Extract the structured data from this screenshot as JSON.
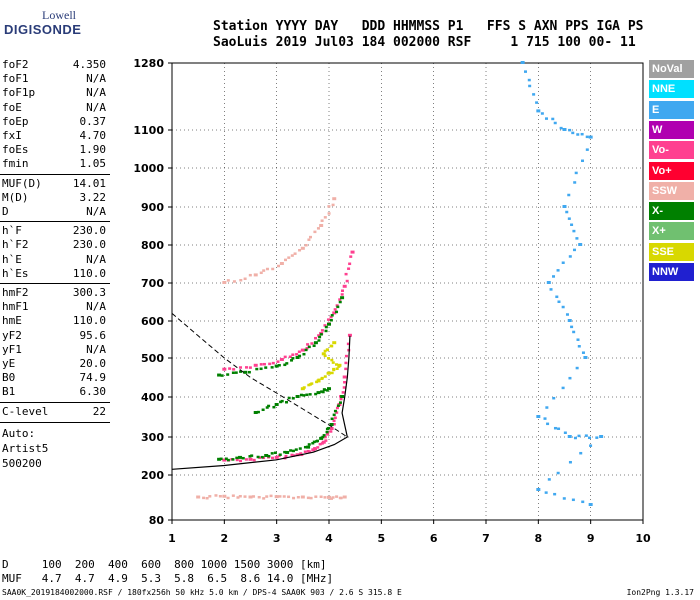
{
  "logo": {
    "line1": "Lowell",
    "line2": "DIGISONDE"
  },
  "header": {
    "line1": "Station YYYY DAY   DDD HHMMSS P1   FFS S AXN PPS IGA PS",
    "line2": "SaoLuis 2019 Jul03 184 002000 RSF     1 715 100 00- 11"
  },
  "params": [
    {
      "k": "foF2",
      "v": "4.350"
    },
    {
      "k": "foF1",
      "v": "N/A"
    },
    {
      "k": "foF1p",
      "v": "N/A"
    },
    {
      "k": "foE",
      "v": "N/A"
    },
    {
      "k": "foEp",
      "v": "0.37"
    },
    {
      "k": "fxI",
      "v": "4.70"
    },
    {
      "k": "foEs",
      "v": "1.90"
    },
    {
      "k": "fmin",
      "v": "1.05"
    },
    {
      "k": "MUF(D)",
      "v": "14.01"
    },
    {
      "k": "M(D)",
      "v": "3.22"
    },
    {
      "k": "D",
      "v": "N/A"
    },
    {
      "k": "h`F",
      "v": "230.0"
    },
    {
      "k": "h`F2",
      "v": "230.0"
    },
    {
      "k": "h`E",
      "v": "N/A"
    },
    {
      "k": "h`Es",
      "v": "110.0"
    },
    {
      "k": "hmF2",
      "v": "300.3"
    },
    {
      "k": "hmF1",
      "v": "N/A"
    },
    {
      "k": "hmE",
      "v": "110.0"
    },
    {
      "k": "yF2",
      "v": "95.6"
    },
    {
      "k": "yF1",
      "v": "N/A"
    },
    {
      "k": "yE",
      "v": "20.0"
    },
    {
      "k": "B0",
      "v": "74.9"
    },
    {
      "k": "B1",
      "v": "6.30"
    },
    {
      "k": "C-level",
      "v": "22"
    }
  ],
  "auto": {
    "l1": "Auto:",
    "l2": "Artist5",
    "l3": "500200"
  },
  "legend": [
    {
      "label": "NoVal",
      "color": "#a0a0a0"
    },
    {
      "label": "NNE",
      "color": "#00e0ff"
    },
    {
      "label": "E",
      "color": "#40a8f0"
    },
    {
      "label": "W",
      "color": "#b000b0"
    },
    {
      "label": "Vo-",
      "color": "#ff4090"
    },
    {
      "label": "Vo+",
      "color": "#ff0030"
    },
    {
      "label": "SSW",
      "color": "#f0b0a8"
    },
    {
      "label": "X-",
      "color": "#008000"
    },
    {
      "label": "X+",
      "color": "#70c070"
    },
    {
      "label": "SSE",
      "color": "#d8d800"
    },
    {
      "label": "NNW",
      "color": "#2020d0"
    }
  ],
  "muf_table": {
    "d_row": "D     100  200  400  600  800 1000 1500 3000 [km]",
    "muf_row": "MUF   4.7  4.7  4.9  5.3  5.8  6.5  8.6 14.0 [MHz]"
  },
  "footer": "SAA0K_2019184002000.RSF / 180fx256h 50 kHz 5.0 km / DPS-4 SAA0K 903 / 2.6 S 315.8 E",
  "version": "Ion2Png 1.3.17",
  "chart_data": {
    "type": "scatter",
    "xlim": [
      1,
      10
    ],
    "ylim": [
      80,
      1280
    ],
    "x_ticks": [
      "1",
      "2",
      "3",
      "4",
      "5",
      "6",
      "7",
      "8",
      "9",
      "10"
    ],
    "y_ticks": [
      "80",
      "200",
      "300",
      "400",
      "500",
      "600",
      "700",
      "800",
      "900",
      "1000",
      "1100",
      "1280"
    ],
    "grid": true,
    "traces": [
      {
        "name": "O-trace",
        "color": "#ff4090",
        "points": [
          [
            2.0,
            238
          ],
          [
            2.5,
            240
          ],
          [
            3.0,
            245
          ],
          [
            3.4,
            252
          ],
          [
            3.7,
            265
          ],
          [
            3.9,
            285
          ],
          [
            4.05,
            320
          ],
          [
            4.2,
            380
          ],
          [
            4.3,
            450
          ],
          [
            4.4,
            560
          ]
        ]
      },
      {
        "name": "X-trace",
        "color": "#008000",
        "points": [
          [
            1.9,
            240
          ],
          [
            2.3,
            245
          ],
          [
            2.8,
            250
          ],
          [
            3.2,
            258
          ],
          [
            3.6,
            272
          ],
          [
            3.85,
            295
          ],
          [
            4.05,
            330
          ],
          [
            4.25,
            400
          ]
        ]
      },
      {
        "name": "O-2hop",
        "color": "#ff4090",
        "points": [
          [
            2.0,
            470
          ],
          [
            2.6,
            480
          ],
          [
            3.1,
            495
          ],
          [
            3.5,
            520
          ],
          [
            3.85,
            565
          ],
          [
            4.1,
            620
          ],
          [
            4.3,
            690
          ],
          [
            4.45,
            780
          ]
        ]
      },
      {
        "name": "X-2hop",
        "color": "#008000",
        "points": [
          [
            1.9,
            455
          ],
          [
            2.4,
            462
          ],
          [
            3.0,
            478
          ],
          [
            3.4,
            500
          ],
          [
            3.75,
            540
          ],
          [
            4.0,
            590
          ],
          [
            4.25,
            660
          ]
        ]
      },
      {
        "name": "O-3hop",
        "color": "#f0b0a8",
        "points": [
          [
            2.0,
            700
          ],
          [
            2.6,
            720
          ],
          [
            3.1,
            750
          ],
          [
            3.5,
            790
          ],
          [
            3.85,
            850
          ],
          [
            4.1,
            920
          ]
        ]
      },
      {
        "name": "Es-trace",
        "color": "#f0b0a8",
        "points": [
          [
            1.5,
            140
          ],
          [
            2.0,
            142
          ],
          [
            2.5,
            140
          ],
          [
            3.0,
            141
          ],
          [
            3.5,
            140
          ],
          [
            4.0,
            139
          ],
          [
            4.3,
            140
          ]
        ]
      },
      {
        "name": "SSE-cluster",
        "color": "#d8d800",
        "points": [
          [
            3.5,
            420
          ],
          [
            3.8,
            440
          ],
          [
            4.0,
            460
          ],
          [
            4.2,
            480
          ],
          [
            3.9,
            510
          ],
          [
            4.1,
            540
          ]
        ]
      },
      {
        "name": "X-scatter",
        "color": "#008000",
        "points": [
          [
            2.6,
            360
          ],
          [
            3.0,
            380
          ],
          [
            3.4,
            400
          ],
          [
            3.8,
            410
          ],
          [
            4.0,
            420
          ]
        ]
      },
      {
        "name": "spread-F-upper",
        "color": "#40a8f0",
        "points": [
          [
            7.7,
            1280
          ],
          [
            8.0,
            1150
          ],
          [
            8.5,
            1100
          ],
          [
            9.0,
            1080
          ],
          [
            8.5,
            900
          ],
          [
            8.8,
            800
          ],
          [
            8.2,
            700
          ],
          [
            8.6,
            600
          ],
          [
            8.9,
            500
          ],
          [
            8.0,
            350
          ],
          [
            8.6,
            300
          ],
          [
            9.2,
            300
          ],
          [
            8.0,
            160
          ],
          [
            9.0,
            120
          ]
        ]
      }
    ],
    "profile_curve": [
      [
        1.0,
        215
      ],
      [
        2.0,
        225
      ],
      [
        3.0,
        240
      ],
      [
        3.7,
        260
      ],
      [
        4.1,
        280
      ],
      [
        4.35,
        300
      ],
      [
        4.3,
        330
      ],
      [
        4.25,
        360
      ],
      [
        4.3,
        400
      ],
      [
        4.35,
        450
      ],
      [
        4.38,
        500
      ],
      [
        4.4,
        560
      ]
    ],
    "dashed_curve": [
      [
        1.0,
        620
      ],
      [
        1.5,
        560
      ],
      [
        2.0,
        500
      ],
      [
        2.5,
        450
      ],
      [
        3.0,
        410
      ],
      [
        3.5,
        370
      ],
      [
        4.0,
        330
      ],
      [
        4.35,
        300
      ]
    ]
  }
}
